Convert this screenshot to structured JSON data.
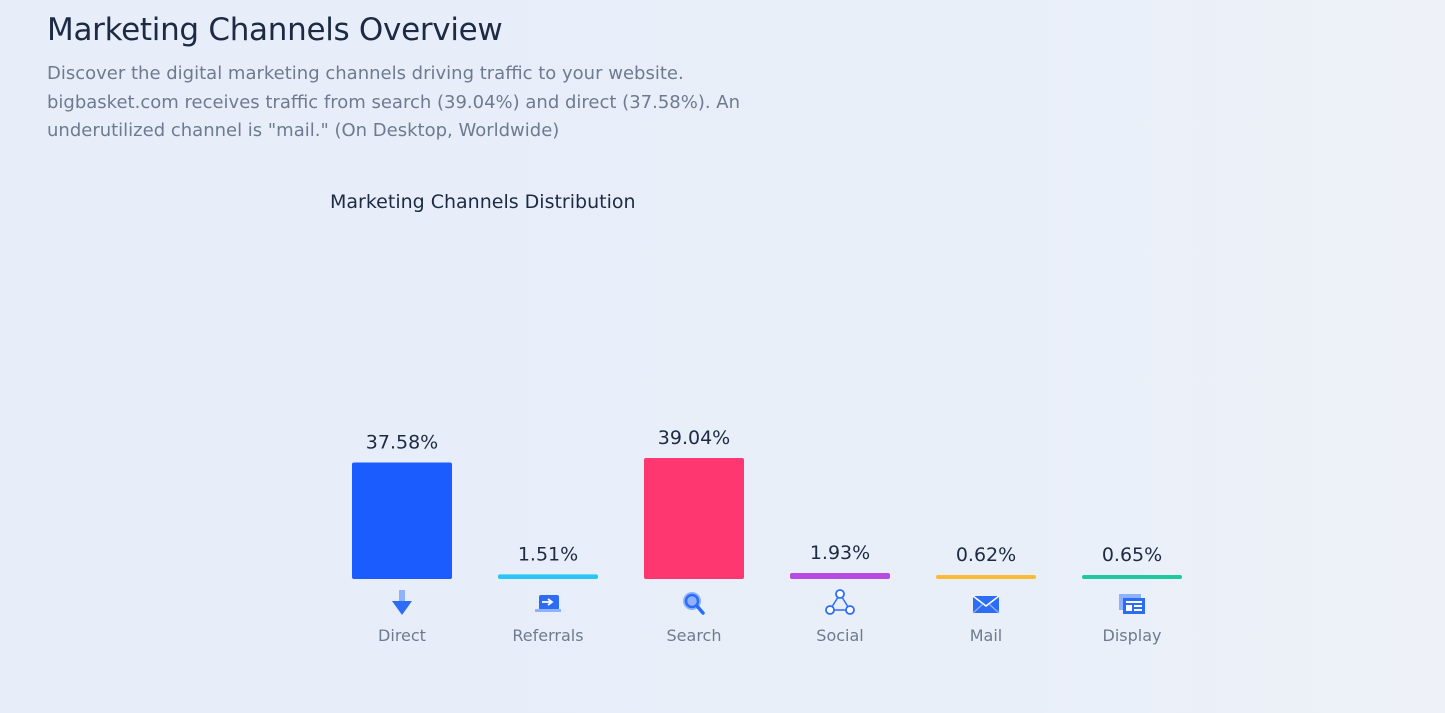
{
  "header": {
    "title": "Marketing Channels Overview",
    "description": "Discover the digital marketing channels driving traffic to your website. bigbasket.com receives traffic from search (39.04%) and direct (37.58%). An underutilized channel is \"mail.\" (On Desktop, Worldwide)"
  },
  "chart_data": {
    "type": "bar",
    "title": "Marketing Channels Distribution",
    "categories": [
      "Direct",
      "Referrals",
      "Search",
      "Social",
      "Mail",
      "Display"
    ],
    "values": [
      37.58,
      1.51,
      39.04,
      1.93,
      0.62,
      0.65
    ],
    "value_labels": [
      "37.58%",
      "1.51%",
      "39.04%",
      "1.93%",
      "0.62%",
      "0.65%"
    ],
    "colors": [
      "#1a5cff",
      "#29c5f6",
      "#ff3771",
      "#b64be4",
      "#fcbb34",
      "#1ec9a0"
    ],
    "icons": [
      "arrow-down-icon",
      "referral-icon",
      "search-icon",
      "social-icon",
      "mail-icon",
      "display-icon"
    ],
    "xlabel": "",
    "ylabel": "",
    "ylim": [
      0,
      39.04
    ]
  }
}
